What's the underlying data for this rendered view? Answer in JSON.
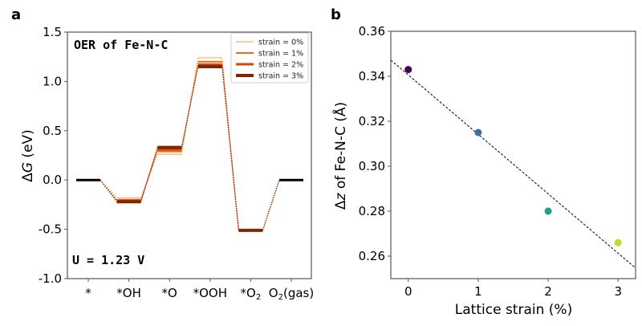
{
  "chart_data": [
    {
      "panel": "a",
      "type": "line",
      "title": "OER of Fe-N-C",
      "annotation": "U = 1.23 V",
      "xlabel": "",
      "ylabel": "ΔG (eV)",
      "ylim": [
        -1.0,
        1.5
      ],
      "yticks": [
        1.5,
        1.0,
        0.5,
        0.0,
        -0.5,
        -1.0
      ],
      "ytick_labels": [
        "1.5",
        "1.0",
        "0.5",
        "0.0",
        "-0.5",
        "-1.0"
      ],
      "categories": [
        "*",
        "*OH",
        "*O",
        "*OOH",
        "*O2",
        "O2(gas)"
      ],
      "category_labels": [
        {
          "main": "*",
          "sub": ""
        },
        {
          "main": "*OH",
          "sub": ""
        },
        {
          "main": "*O",
          "sub": ""
        },
        {
          "main": "*OOH",
          "sub": ""
        },
        {
          "main": "*O",
          "sub": "2"
        },
        {
          "main": "O",
          "sub": "2",
          "tail": "(gas)"
        }
      ],
      "endpoint_color": "#000000",
      "legend_position": "top-right",
      "series": [
        {
          "name": "strain = 0%",
          "color": "#fdae6b",
          "values": [
            0.0,
            -0.18,
            0.26,
            1.24,
            -0.51,
            0.0
          ]
        },
        {
          "name": "strain = 1%",
          "color": "#f16913",
          "values": [
            0.0,
            -0.2,
            0.29,
            1.2,
            -0.51,
            0.0
          ]
        },
        {
          "name": "strain = 2%",
          "color": "#d94801",
          "values": [
            0.0,
            -0.21,
            0.31,
            1.17,
            -0.51,
            0.0
          ]
        },
        {
          "name": "strain = 3%",
          "color": "#7f2704",
          "values": [
            0.0,
            -0.22,
            0.33,
            1.15,
            -0.51,
            0.0
          ]
        }
      ]
    },
    {
      "panel": "b",
      "type": "scatter",
      "title": "",
      "xlabel": "Lattice strain (%)",
      "ylabel_prefix": "Δ",
      "ylabel_var": "z",
      "ylabel_suffix": " of Fe-N-C (Å)",
      "xlim": [
        -0.25,
        3.25
      ],
      "ylim": [
        0.25,
        0.36
      ],
      "xticks": [
        0,
        1,
        2,
        3
      ],
      "xtick_labels": [
        "0",
        "1",
        "2",
        "3"
      ],
      "yticks": [
        0.36,
        0.34,
        0.32,
        0.3,
        0.28,
        0.26
      ],
      "ytick_labels": [
        "0.36",
        "0.34",
        "0.32",
        "0.30",
        "0.28",
        "0.26"
      ],
      "points": [
        {
          "x": 0,
          "y": 0.343,
          "color": "#440154"
        },
        {
          "x": 1,
          "y": 0.315,
          "color": "#3b6ea5"
        },
        {
          "x": 2,
          "y": 0.28,
          "color": "#1fa187"
        },
        {
          "x": 3,
          "y": 0.266,
          "color": "#bddf26"
        }
      ],
      "fit_line": {
        "x": [
          -0.25,
          3.25
        ],
        "y": [
          0.3472,
          0.2547
        ],
        "style": "dashed",
        "color": "#000000"
      }
    }
  ],
  "panel_labels": [
    "a",
    "b"
  ]
}
